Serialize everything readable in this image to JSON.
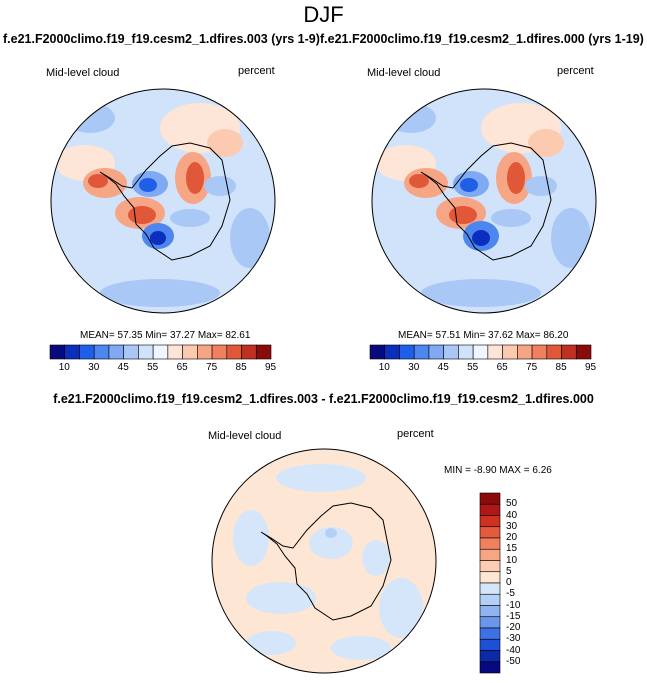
{
  "season": "DJF",
  "panels": [
    {
      "title": "f.e21.F2000climo.f19_f19.cesm2_1.dfires.003 (yrs 1-9)",
      "left_label": "Mid-level cloud",
      "right_label": "percent",
      "stats": "MEAN=  57.35  Min=  37.27  Max=  82.61"
    },
    {
      "title": "f.e21.F2000climo.f19_f19.cesm2_1.dfires.000 (yrs 1-19)",
      "left_label": "Mid-level cloud",
      "right_label": "percent",
      "stats": "MEAN=  57.51  Min=  37.62  Max=  86.20"
    }
  ],
  "abs_colorbar": {
    "colors": [
      "#08087f",
      "#0a2fbf",
      "#1f5fe8",
      "#4d86ee",
      "#7fa9f2",
      "#a9c8f6",
      "#d1e3fa",
      "#f0f6ff",
      "#fde6d8",
      "#fbcab0",
      "#f7a685",
      "#f07f5e",
      "#e05838",
      "#c03020",
      "#8b0a0a"
    ],
    "tick_labels": [
      "10",
      "30",
      "45",
      "55",
      "65",
      "75",
      "85",
      "95"
    ]
  },
  "difference": {
    "title": "f.e21.F2000climo.f19_f19.cesm2_1.dfires.003 - f.e21.F2000climo.f19_f19.cesm2_1.dfires.000",
    "left_label": "Mid-level cloud",
    "right_label": "percent",
    "stats": "MIN =  -8.90 MAX =  6.26",
    "colorbar": {
      "colors": [
        "#8b0a0a",
        "#b01818",
        "#d03020",
        "#e55a3c",
        "#f0805e",
        "#f7a685",
        "#fbcdb2",
        "#fde6d4",
        "#d6e6fa",
        "#b5d0f6",
        "#8fb4f0",
        "#6a96ec",
        "#3f70e4",
        "#1f4fd6",
        "#0c2aa8",
        "#08087f"
      ],
      "tick_labels": [
        "50",
        "40",
        "30",
        "20",
        "15",
        "10",
        "5",
        "0",
        "-5",
        "-10",
        "-15",
        "-20",
        "-30",
        "-40",
        "-50"
      ]
    }
  }
}
